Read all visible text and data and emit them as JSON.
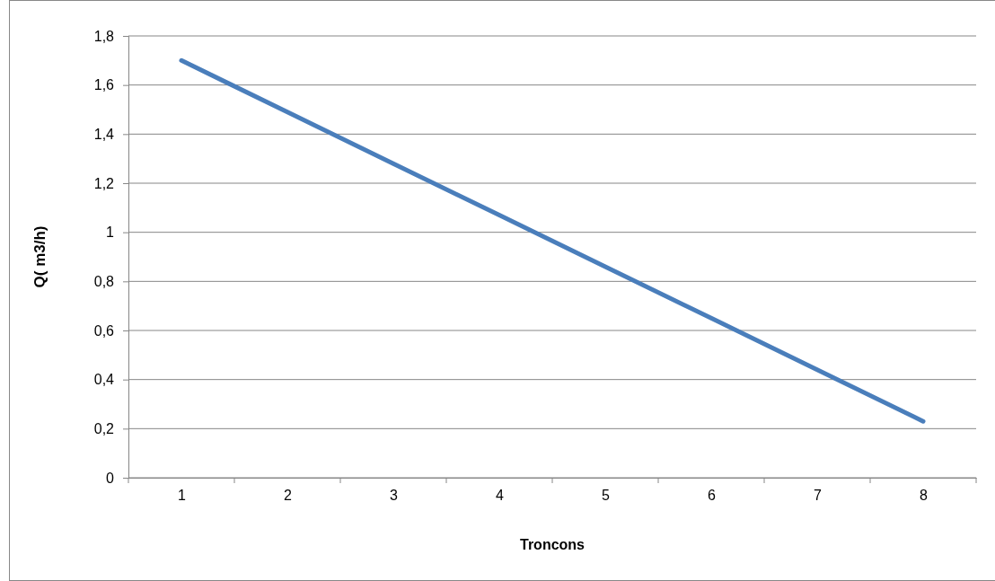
{
  "chart_data": {
    "type": "line",
    "xlabel": "Troncons",
    "ylabel": "Q( m3/h)",
    "categories": [
      "1",
      "2",
      "3",
      "4",
      "5",
      "6",
      "7",
      "8"
    ],
    "series": [
      {
        "color": "#4a7ebb",
        "values": [
          1.7,
          1.49,
          1.28,
          1.07,
          0.86,
          0.65,
          0.44,
          0.23
        ]
      }
    ],
    "ylim": [
      0,
      1.8
    ],
    "yticks": [
      0,
      {
        "value": 0.2,
        "label": "0,2"
      },
      {
        "value": 0.4,
        "label": "0,4"
      },
      {
        "value": 0.6,
        "label": "0,6"
      },
      {
        "value": 0.8,
        "label": "0,8"
      },
      1,
      {
        "value": 1.2,
        "label": "1,2"
      },
      {
        "value": 1.4,
        "label": "1,4"
      },
      {
        "value": 1.6,
        "label": "1,6"
      },
      {
        "value": 1.8,
        "label": "1,8"
      }
    ],
    "grid": "y",
    "marker": "none",
    "line_style": "solid"
  }
}
